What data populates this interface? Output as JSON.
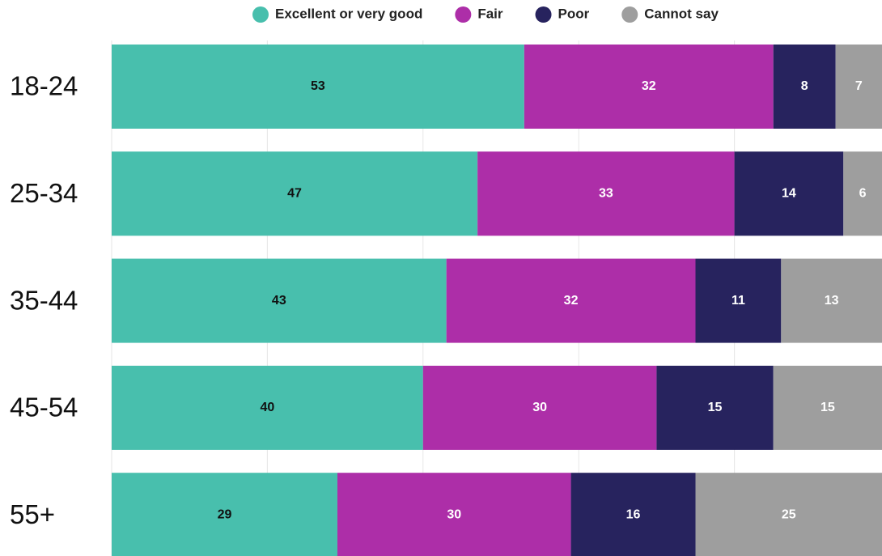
{
  "chart_data": {
    "type": "stacked_barh",
    "categories": [
      "18-24",
      "25-34",
      "35-44",
      "45-54",
      "55+"
    ],
    "series": [
      {
        "name": "Excellent or very good",
        "color": "#48bfad",
        "values": [
          53,
          47,
          43,
          40,
          29
        ]
      },
      {
        "name": "Fair",
        "color": "#ad2ea8",
        "values": [
          32,
          33,
          32,
          30,
          30
        ]
      },
      {
        "name": "Poor",
        "color": "#27235e",
        "values": [
          8,
          14,
          11,
          15,
          16
        ]
      },
      {
        "name": "Cannot say",
        "color": "#9e9e9e",
        "values": [
          7,
          6,
          13,
          15,
          25
        ]
      }
    ],
    "xlim": [
      0,
      100
    ],
    "xticks": [
      0,
      20,
      40,
      60,
      80,
      100
    ],
    "grid": true,
    "legend": "top"
  }
}
